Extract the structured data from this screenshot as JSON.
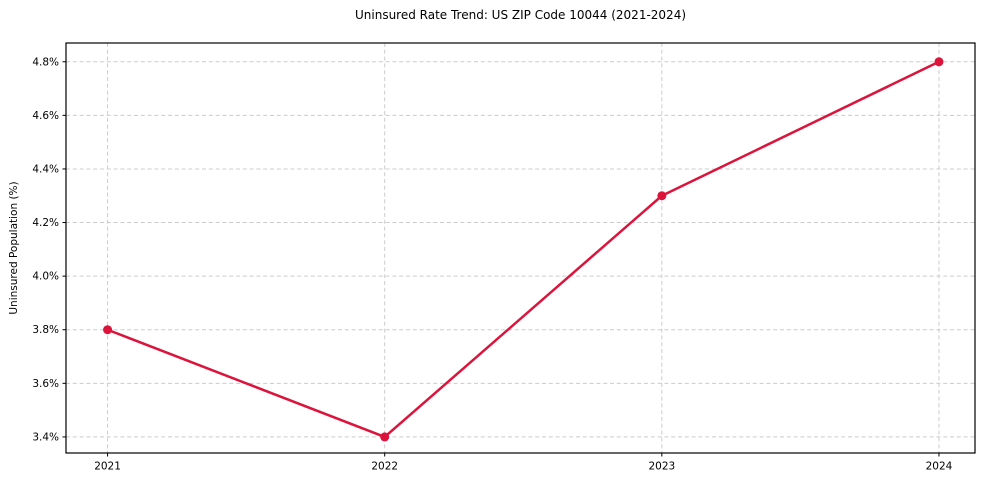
{
  "chart_data": {
    "type": "line",
    "title": "Uninsured Rate Trend: US ZIP Code 10044 (2021-2024)",
    "xlabel": "",
    "ylabel": "Uninsured Population (%)",
    "x": [
      2021,
      2022,
      2023,
      2024
    ],
    "series": [
      {
        "name": "Uninsured rate",
        "values": [
          3.8,
          3.4,
          4.3,
          4.8
        ],
        "color": "#DC143C",
        "marker": "circle",
        "marker_radius": 4.5,
        "line_width": 2.5
      }
    ],
    "xticks": {
      "values": [
        2021,
        2022,
        2023,
        2024
      ],
      "labels": [
        "2021",
        "2022",
        "2023",
        "2024"
      ]
    },
    "yticks": {
      "values": [
        3.4,
        3.6,
        3.8,
        4.0,
        4.2,
        4.4,
        4.6,
        4.8
      ],
      "labels": [
        "3.4%",
        "3.6%",
        "3.8%",
        "4.0%",
        "4.2%",
        "4.4%",
        "4.6%",
        "4.8%"
      ]
    },
    "xlim": [
      2020.85,
      2024.13
    ],
    "ylim": [
      3.34,
      4.87
    ],
    "grid": {
      "visible": true,
      "style": "dashed",
      "color": "#cccccc",
      "axes": "both"
    },
    "legend": "none",
    "colors": {
      "background": "#ffffff",
      "spine": "#000000",
      "tick_text": "#000000",
      "title_text": "#000000"
    }
  }
}
